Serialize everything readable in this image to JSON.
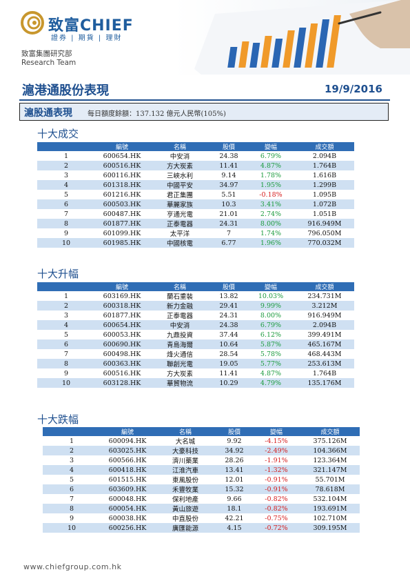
{
  "header": {
    "brand_cn": "致富CHIEF",
    "brand_tag": "證券 | 期貨 | 理財",
    "dept_cn": "致富集團研究部",
    "dept_en": "Research Team"
  },
  "report": {
    "title": "滬港通股份表現",
    "date": "19/9/2016"
  },
  "quota": {
    "title": "滬股通表現",
    "text": "每日額度餘額：137.132 億元人民幣(105%)"
  },
  "columns": [
    "",
    "編號",
    "名稱",
    "股價",
    "變幅",
    "成交額"
  ],
  "sections": [
    {
      "title": "十大成交",
      "rows": [
        {
          "rank": "1",
          "code": "600654.HK",
          "name": "中安消",
          "price": "24.38",
          "change": "6.79%",
          "dir": "up",
          "turnover": "2.094B"
        },
        {
          "rank": "2",
          "code": "600516.HK",
          "name": "方大炭素",
          "price": "11.41",
          "change": "4.87%",
          "dir": "up",
          "turnover": "1.764B"
        },
        {
          "rank": "3",
          "code": "600116.HK",
          "name": "三峽水利",
          "price": "9.14",
          "change": "1.78%",
          "dir": "up",
          "turnover": "1.616B"
        },
        {
          "rank": "4",
          "code": "601318.HK",
          "name": "中國平安",
          "price": "34.97",
          "change": "1.95%",
          "dir": "up",
          "turnover": "1.299B"
        },
        {
          "rank": "5",
          "code": "601216.HK",
          "name": "君正集團",
          "price": "5.51",
          "change": "-0.18%",
          "dir": "down",
          "turnover": "1.095B"
        },
        {
          "rank": "6",
          "code": "600503.HK",
          "name": "華麗家族",
          "price": "10.3",
          "change": "3.41%",
          "dir": "up",
          "turnover": "1.072B"
        },
        {
          "rank": "7",
          "code": "600487.HK",
          "name": "亨通光電",
          "price": "21.01",
          "change": "2.74%",
          "dir": "up",
          "turnover": "1.051B"
        },
        {
          "rank": "8",
          "code": "601877.HK",
          "name": "正泰電器",
          "price": "24.31",
          "change": "8.00%",
          "dir": "up",
          "turnover": "916.949M"
        },
        {
          "rank": "9",
          "code": "601099.HK",
          "name": "太平洋",
          "price": "7",
          "change": "1.74%",
          "dir": "up",
          "turnover": "796.050M"
        },
        {
          "rank": "10",
          "code": "601985.HK",
          "name": "中國核電",
          "price": "6.77",
          "change": "1.96%",
          "dir": "up",
          "turnover": "770.032M"
        }
      ]
    },
    {
      "title": "十大升幅",
      "rows": [
        {
          "rank": "1",
          "code": "603169.HK",
          "name": "蘭石重裝",
          "price": "13.82",
          "change": "10.03%",
          "dir": "up",
          "turnover": "234.731M"
        },
        {
          "rank": "2",
          "code": "600318.HK",
          "name": "新力金融",
          "price": "29.41",
          "change": "9.99%",
          "dir": "up",
          "turnover": "3.212M"
        },
        {
          "rank": "3",
          "code": "601877.HK",
          "name": "正泰電器",
          "price": "24.31",
          "change": "8.00%",
          "dir": "up",
          "turnover": "916.949M"
        },
        {
          "rank": "4",
          "code": "600654.HK",
          "name": "中安消",
          "price": "24.38",
          "change": "6.79%",
          "dir": "up",
          "turnover": "2.094B"
        },
        {
          "rank": "5",
          "code": "600053.HK",
          "name": "九鼎投資",
          "price": "37.44",
          "change": "6.12%",
          "dir": "up",
          "turnover": "399.491M"
        },
        {
          "rank": "6",
          "code": "600690.HK",
          "name": "青島海爾",
          "price": "10.64",
          "change": "5.87%",
          "dir": "up",
          "turnover": "465.167M"
        },
        {
          "rank": "7",
          "code": "600498.HK",
          "name": "烽火通信",
          "price": "28.54",
          "change": "5.78%",
          "dir": "up",
          "turnover": "468.443M"
        },
        {
          "rank": "8",
          "code": "600363.HK",
          "name": "聯創光電",
          "price": "19.05",
          "change": "5.77%",
          "dir": "up",
          "turnover": "253.613M"
        },
        {
          "rank": "9",
          "code": "600516.HK",
          "name": "方大炭素",
          "price": "11.41",
          "change": "4.87%",
          "dir": "up",
          "turnover": "1.764B"
        },
        {
          "rank": "10",
          "code": "603128.HK",
          "name": "華貿物流",
          "price": "10.29",
          "change": "4.79%",
          "dir": "up",
          "turnover": "135.176M"
        }
      ]
    },
    {
      "title": "十大跌幅",
      "rows": [
        {
          "rank": "1",
          "code": "600094.HK",
          "name": "大名城",
          "price": "9.92",
          "change": "-4.15%",
          "dir": "down",
          "turnover": "375.126M"
        },
        {
          "rank": "2",
          "code": "603025.HK",
          "name": "大豪科技",
          "price": "34.92",
          "change": "-2.49%",
          "dir": "down",
          "turnover": "104.366M"
        },
        {
          "rank": "3",
          "code": "600566.HK",
          "name": "濟川藥業",
          "price": "28.26",
          "change": "-1.91%",
          "dir": "down",
          "turnover": "123.364M"
        },
        {
          "rank": "4",
          "code": "600418.HK",
          "name": "江淮汽車",
          "price": "13.41",
          "change": "-1.32%",
          "dir": "down",
          "turnover": "321.147M"
        },
        {
          "rank": "5",
          "code": "601515.HK",
          "name": "東風股份",
          "price": "12.01",
          "change": "-0.91%",
          "dir": "down",
          "turnover": "55.701M"
        },
        {
          "rank": "6",
          "code": "603609.HK",
          "name": "禾豐牧業",
          "price": "15.32",
          "change": "-0.91%",
          "dir": "down",
          "turnover": "78.618M"
        },
        {
          "rank": "7",
          "code": "600048.HK",
          "name": "保利地產",
          "price": "9.66",
          "change": "-0.82%",
          "dir": "down",
          "turnover": "532.104M"
        },
        {
          "rank": "8",
          "code": "600054.HK",
          "name": "黃山旅遊",
          "price": "18.1",
          "change": "-0.82%",
          "dir": "down",
          "turnover": "193.691M"
        },
        {
          "rank": "9",
          "code": "600038.HK",
          "name": "中直股份",
          "price": "42.21",
          "change": "-0.75%",
          "dir": "down",
          "turnover": "102.710M"
        },
        {
          "rank": "10",
          "code": "600256.HK",
          "name": "廣匯能源",
          "price": "4.15",
          "change": "-0.72%",
          "dir": "down",
          "turnover": "309.195M"
        }
      ]
    }
  ],
  "footer": {
    "url": "www.chiefgroup.com.hk"
  },
  "colors": {
    "brand_blue": "#1e4f8f",
    "header_blue": "#2f6db5",
    "row_stripe": "#cfe0f2",
    "gain_green": "#1a9a3c",
    "loss_red": "#d61c1c"
  }
}
